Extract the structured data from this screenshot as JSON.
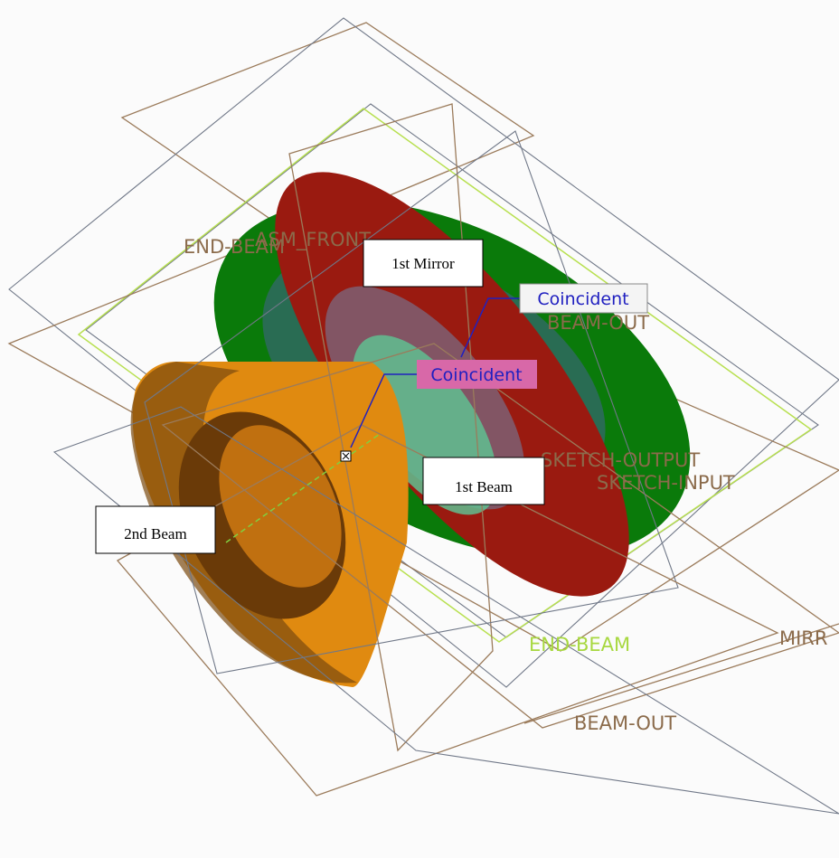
{
  "callouts": [
    "1st Mirror",
    "1st Beam",
    "2nd Beam"
  ],
  "constraints": [
    "Coincident",
    "Coincident"
  ],
  "datum_labels": [
    "END-BEAM",
    "ASM_FRONT",
    "BEAM-OUT",
    "SKETCH-OUTPUT",
    "SKETCH-INPUT",
    "END-BEAM",
    "MIRR",
    "BEAM-OUT"
  ]
}
